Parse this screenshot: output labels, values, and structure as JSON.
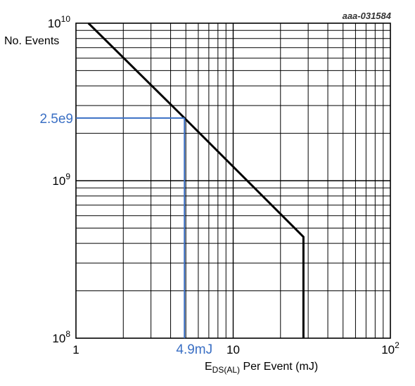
{
  "chart_data": {
    "type": "line",
    "figure_code": "aaa-031584",
    "ylabel": "No. Events",
    "xlabel": {
      "main": "E",
      "subscript": "DS(AL)",
      "rest": " Per Event  (mJ)"
    },
    "x_scale": "log",
    "y_scale": "log",
    "xlim": [
      1,
      100
    ],
    "ylim": [
      100000000,
      10000000000
    ],
    "x_ticks": [
      {
        "value": 1,
        "base": "1",
        "exp": ""
      },
      {
        "value": 10,
        "base": "10",
        "exp": ""
      },
      {
        "value": 100,
        "base": "10",
        "exp": "2"
      }
    ],
    "y_ticks": [
      {
        "value": 100000000,
        "base": "10",
        "exp": "8"
      },
      {
        "value": 1000000000,
        "base": "10",
        "exp": "9"
      },
      {
        "value": 10000000000,
        "base": "10",
        "exp": "10"
      }
    ],
    "grid": true,
    "series": [
      {
        "color": "#000000",
        "points": [
          {
            "x": 1.2,
            "y": 10000000000
          },
          {
            "x": 4.9,
            "y": 2500000000
          },
          {
            "x": 28,
            "y": 440000000
          },
          {
            "x": 28,
            "y": 100000000
          }
        ]
      }
    ],
    "annotations": [
      {
        "text": "2.5e9",
        "axis": "y",
        "value": 2500000000,
        "at_x": 4.9,
        "color": "#3a6fc4"
      },
      {
        "text": "4.9mJ",
        "axis": "x",
        "value": 4.9,
        "at_y": 2500000000,
        "color": "#3a6fc4"
      }
    ]
  }
}
